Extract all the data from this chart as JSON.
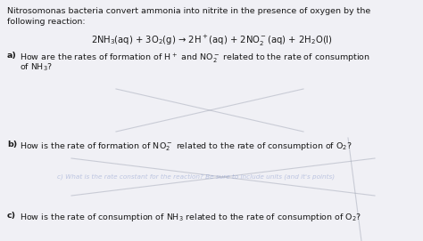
{
  "paper_color": "#f0f0f5",
  "text_color": "#1a1a1a",
  "line1": "Nitrosomonas bacteria convert ammonia into nitrite in the presence of oxygen by the",
  "line2": "following reaction:",
  "equation": "2NH$_3$(aq) + 3O$_2$(g) → 2H$^+$(aq) + 2NO$_2^-$(aq) + 2H$_2$O(l)",
  "qa_label": "a)",
  "qa_text": "How are the rates of formation of H$^+$ and NO$_2^-$ related to the rate of consumption",
  "qa_text2": "of NH$_3$?",
  "qb_label": "b)",
  "qb_text": "How is the rate of formation of NO$_2^-$ related to the rate of consumption of O$_2$?",
  "qc_label": "c)",
  "qc_text": "How is the rate of consumption of NH$_3$ related to the rate of consumption of O$_2$?",
  "watermark": "c) What is the rate constant for the reaction? Be sure to include units (and it's points)",
  "font_size_body": 6.8,
  "font_size_eq": 7.2,
  "line_color": "#9aA0b0",
  "line_alpha": 0.45
}
